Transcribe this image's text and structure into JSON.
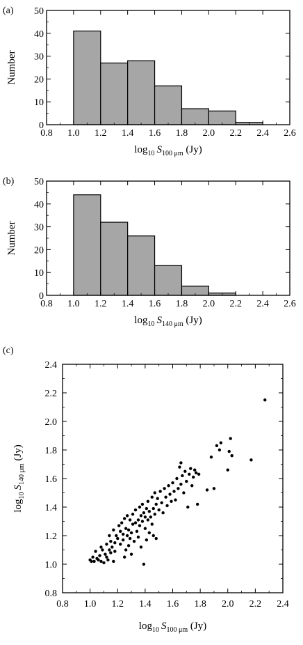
{
  "chart_data": [
    {
      "panel_label": "(a)",
      "type": "bar",
      "histogram": true,
      "bins": [
        {
          "x0": 1.0,
          "x1": 1.2,
          "value": 41
        },
        {
          "x0": 1.2,
          "x1": 1.4,
          "value": 27
        },
        {
          "x0": 1.4,
          "x1": 1.6,
          "value": 28
        },
        {
          "x0": 1.6,
          "x1": 1.8,
          "value": 17
        },
        {
          "x0": 1.8,
          "x1": 2.0,
          "value": 7
        },
        {
          "x0": 2.0,
          "x1": 2.2,
          "value": 6
        },
        {
          "x0": 2.2,
          "x1": 2.4,
          "value": 1
        }
      ],
      "bar_color": "#a6a6a6",
      "xlim": [
        0.8,
        2.6
      ],
      "ylim": [
        0,
        50
      ],
      "xticks": [
        "0.8",
        "1.0",
        "1.2",
        "1.4",
        "1.6",
        "1.8",
        "2.0",
        "2.2",
        "2.4",
        "2.6"
      ],
      "yticks": [
        "0",
        "10",
        "20",
        "30",
        "40",
        "50"
      ],
      "ylabel": "Number",
      "xlabel": {
        "base": "log",
        "base_sub": "10",
        "var": "S",
        "var_sub": "100 μm",
        "unit": "(Jy)"
      }
    },
    {
      "panel_label": "(b)",
      "type": "bar",
      "histogram": true,
      "bins": [
        {
          "x0": 1.0,
          "x1": 1.2,
          "value": 44
        },
        {
          "x0": 1.2,
          "x1": 1.4,
          "value": 32
        },
        {
          "x0": 1.4,
          "x1": 1.6,
          "value": 26
        },
        {
          "x0": 1.6,
          "x1": 1.8,
          "value": 13
        },
        {
          "x0": 1.8,
          "x1": 2.0,
          "value": 4
        },
        {
          "x0": 2.0,
          "x1": 2.2,
          "value": 1
        }
      ],
      "bar_color": "#a6a6a6",
      "xlim": [
        0.8,
        2.6
      ],
      "ylim": [
        0,
        50
      ],
      "xticks": [
        "0.8",
        "1.0",
        "1.2",
        "1.4",
        "1.6",
        "1.8",
        "2.0",
        "2.2",
        "2.4",
        "2.6"
      ],
      "yticks": [
        "0",
        "10",
        "20",
        "30",
        "40",
        "50"
      ],
      "ylabel": "Number",
      "xlabel": {
        "base": "log",
        "base_sub": "10",
        "var": "S",
        "var_sub": "140 μm",
        "unit": "(Jy)"
      }
    },
    {
      "panel_label": "(c)",
      "type": "scatter",
      "xlim": [
        0.8,
        2.4
      ],
      "ylim": [
        0.8,
        2.4
      ],
      "xticks": [
        "0.8",
        "1.0",
        "1.2",
        "1.4",
        "1.6",
        "1.8",
        "2.0",
        "2.2",
        "2.4"
      ],
      "yticks": [
        "0.8",
        "1.0",
        "1.2",
        "1.4",
        "1.6",
        "1.8",
        "2.0",
        "2.2",
        "2.4"
      ],
      "xlabel": {
        "base": "log",
        "base_sub": "10",
        "var": "S",
        "var_sub": "100 μm",
        "unit": "(Jy)"
      },
      "ylabel": {
        "base": "log",
        "base_sub": "10",
        "var": "S",
        "var_sub": "140 μm",
        "unit": "(Jy)"
      },
      "point_color": "#000000",
      "points": [
        [
          1.0,
          1.03
        ],
        [
          1.01,
          1.02
        ],
        [
          1.02,
          1.05
        ],
        [
          1.03,
          1.02
        ],
        [
          1.04,
          1.09
        ],
        [
          1.05,
          1.04
        ],
        [
          1.06,
          1.03
        ],
        [
          1.07,
          1.06
        ],
        [
          1.08,
          1.02
        ],
        [
          1.08,
          1.12
        ],
        [
          1.09,
          1.1
        ],
        [
          1.1,
          1.01
        ],
        [
          1.11,
          1.07
        ],
        [
          1.12,
          1.05
        ],
        [
          1.12,
          1.14
        ],
        [
          1.13,
          1.03
        ],
        [
          1.14,
          1.1
        ],
        [
          1.14,
          1.2
        ],
        [
          1.15,
          1.08
        ],
        [
          1.15,
          1.16
        ],
        [
          1.16,
          1.12
        ],
        [
          1.17,
          1.02
        ],
        [
          1.17,
          1.24
        ],
        [
          1.18,
          1.15
        ],
        [
          1.18,
          1.09
        ],
        [
          1.19,
          1.2
        ],
        [
          1.2,
          1.18
        ],
        [
          1.21,
          1.27
        ],
        [
          1.22,
          1.14
        ],
        [
          1.22,
          1.23
        ],
        [
          1.23,
          1.29
        ],
        [
          1.24,
          1.17
        ],
        [
          1.24,
          1.21
        ],
        [
          1.25,
          1.32
        ],
        [
          1.25,
          1.05
        ],
        [
          1.26,
          1.25
        ],
        [
          1.26,
          1.1
        ],
        [
          1.27,
          1.2
        ],
        [
          1.27,
          1.34
        ],
        [
          1.28,
          1.24
        ],
        [
          1.28,
          1.13
        ],
        [
          1.29,
          1.31
        ],
        [
          1.29,
          1.18
        ],
        [
          1.3,
          1.22
        ],
        [
          1.3,
          1.07
        ],
        [
          1.31,
          1.35
        ],
        [
          1.31,
          1.28
        ],
        [
          1.32,
          1.16
        ],
        [
          1.33,
          1.29
        ],
        [
          1.33,
          1.38
        ],
        [
          1.34,
          1.23
        ],
        [
          1.35,
          1.31
        ],
        [
          1.35,
          1.19
        ],
        [
          1.36,
          1.4
        ],
        [
          1.36,
          1.27
        ],
        [
          1.37,
          1.34
        ],
        [
          1.37,
          1.12
        ],
        [
          1.38,
          1.3
        ],
        [
          1.38,
          1.42
        ],
        [
          1.39,
          1.36
        ],
        [
          1.39,
          1.0
        ],
        [
          1.4,
          1.25
        ],
        [
          1.4,
          1.33
        ],
        [
          1.41,
          1.39
        ],
        [
          1.41,
          1.17
        ],
        [
          1.42,
          1.31
        ],
        [
          1.42,
          1.44
        ],
        [
          1.43,
          1.37
        ],
        [
          1.43,
          1.22
        ],
        [
          1.44,
          1.33
        ],
        [
          1.45,
          1.47
        ],
        [
          1.45,
          1.28
        ],
        [
          1.46,
          1.39
        ],
        [
          1.46,
          1.2
        ],
        [
          1.47,
          1.35
        ],
        [
          1.47,
          1.5
        ],
        [
          1.48,
          1.42
        ],
        [
          1.48,
          1.18
        ],
        [
          1.49,
          1.46
        ],
        [
          1.5,
          1.38
        ],
        [
          1.51,
          1.51
        ],
        [
          1.52,
          1.43
        ],
        [
          1.53,
          1.36
        ],
        [
          1.54,
          1.53
        ],
        [
          1.55,
          1.47
        ],
        [
          1.56,
          1.41
        ],
        [
          1.57,
          1.55
        ],
        [
          1.58,
          1.49
        ],
        [
          1.59,
          1.44
        ],
        [
          1.6,
          1.57
        ],
        [
          1.61,
          1.51
        ],
        [
          1.62,
          1.45
        ],
        [
          1.63,
          1.6
        ],
        [
          1.64,
          1.53
        ],
        [
          1.65,
          1.68
        ],
        [
          1.66,
          1.56
        ],
        [
          1.66,
          1.71
        ],
        [
          1.67,
          1.62
        ],
        [
          1.68,
          1.5
        ],
        [
          1.69,
          1.65
        ],
        [
          1.7,
          1.58
        ],
        [
          1.71,
          1.4
        ],
        [
          1.72,
          1.63
        ],
        [
          1.73,
          1.67
        ],
        [
          1.74,
          1.55
        ],
        [
          1.75,
          1.61
        ],
        [
          1.76,
          1.66
        ],
        [
          1.77,
          1.64
        ],
        [
          1.78,
          1.42
        ],
        [
          1.79,
          1.63
        ],
        [
          1.85,
          1.52
        ],
        [
          1.88,
          1.75
        ],
        [
          1.9,
          1.53
        ],
        [
          1.92,
          1.83
        ],
        [
          1.94,
          1.8
        ],
        [
          1.95,
          1.85
        ],
        [
          2.0,
          1.66
        ],
        [
          2.01,
          1.79
        ],
        [
          2.02,
          1.88
        ],
        [
          2.03,
          1.76
        ],
        [
          2.17,
          1.73
        ],
        [
          2.27,
          2.15
        ]
      ]
    }
  ]
}
